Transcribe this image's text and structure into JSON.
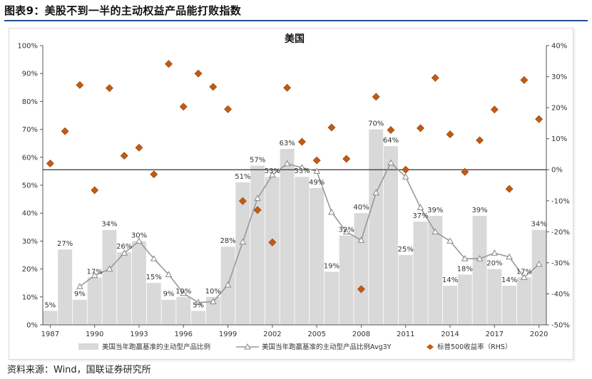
{
  "heading": "图表9：美股不到一半的主动权益产品能打败指数",
  "source": "资料来源：Wind，国联证券研究所",
  "chart_data": {
    "type": "bar",
    "title": "美国",
    "x": [
      1987,
      1988,
      1989,
      1990,
      1991,
      1992,
      1993,
      1994,
      1995,
      1996,
      1997,
      1998,
      1999,
      2000,
      2001,
      2002,
      2003,
      2004,
      2005,
      2006,
      2007,
      2008,
      2009,
      2010,
      2011,
      2012,
      2013,
      2014,
      2015,
      2016,
      2017,
      2018,
      2019,
      2020
    ],
    "x_tick_labels": [
      "1987",
      "1990",
      "1993",
      "1996",
      "1999",
      "2002",
      "2005",
      "2008",
      "2011",
      "2014",
      "2017",
      "2020"
    ],
    "y_left": {
      "min": 0,
      "max": 100,
      "ticks": [
        "0%",
        "10%",
        "20%",
        "30%",
        "40%",
        "50%",
        "60%",
        "70%",
        "80%",
        "90%",
        "100%"
      ]
    },
    "y_right": {
      "min": -50,
      "max": 40,
      "ticks": [
        "-50%",
        "-40%",
        "-30%",
        "-20%",
        "-10%",
        "0%",
        "10%",
        "20%",
        "30%",
        "40%"
      ]
    },
    "grid": false,
    "legend_position": "bottom",
    "reference_line": {
      "axis": "right",
      "value": 0
    },
    "series": [
      {
        "name": "美国当年跑赢基准的主动型产品比例",
        "kind": "bar",
        "axis": "left",
        "color": "#d9d9d9",
        "values": [
          5,
          27,
          9,
          17,
          34,
          26,
          30,
          15,
          9,
          10,
          5,
          10,
          28,
          51,
          57,
          53,
          63,
          53,
          49,
          19,
          32,
          40,
          70,
          64,
          25,
          37,
          39,
          14,
          18,
          39,
          20,
          14,
          17,
          34
        ],
        "labels": [
          "5%",
          "27%",
          "9%",
          "17%",
          "34%",
          "26%",
          "30%",
          "15%",
          "9%",
          "10%",
          "5%",
          "10%",
          "28%",
          "51%",
          "57%",
          "53%",
          "63%",
          "53%",
          "49%",
          "19%",
          "32%",
          "40%",
          "70%",
          "64%",
          "25%",
          "37%",
          "39%",
          "14%",
          "18%",
          "39%",
          "20%",
          "14%",
          "17%",
          "34%"
        ]
      },
      {
        "name": "美国当年跑赢基准的主动型产品比例Avg3Y",
        "kind": "line",
        "axis": "left",
        "color": "#999999",
        "x": [
          1989,
          1990,
          1991,
          1992,
          1993,
          1994,
          1995,
          1996,
          1997,
          1998,
          1999,
          2000,
          2001,
          2002,
          2003,
          2004,
          2005,
          2006,
          2007,
          2008,
          2009,
          2010,
          2011,
          2012,
          2013,
          2014,
          2015,
          2016,
          2017,
          2018,
          2019,
          2020
        ],
        "values": [
          13.7,
          17.7,
          20,
          25.7,
          30,
          23.7,
          18,
          11.3,
          8,
          8.3,
          14.3,
          29.7,
          45.3,
          53.7,
          57.7,
          56.3,
          55,
          40.3,
          33.3,
          30.3,
          47.3,
          58,
          53,
          42,
          33.3,
          30,
          23.7,
          23.7,
          25.7,
          24.3,
          17,
          21.7
        ]
      },
      {
        "name": "标普500收益率（RHS）",
        "kind": "scatter",
        "axis": "right",
        "color": "#c55a11",
        "values": [
          2,
          12.4,
          27.3,
          -6.6,
          26.3,
          4.5,
          7.1,
          -1.5,
          34.1,
          20.3,
          31,
          26.7,
          19.5,
          -10.1,
          -13,
          -23.4,
          26.4,
          9,
          3,
          13.6,
          3.5,
          -38.5,
          23.5,
          12.8,
          0,
          13.4,
          29.6,
          11.4,
          -0.7,
          9.5,
          19.4,
          -6.2,
          28.9,
          16.3
        ]
      }
    ]
  }
}
